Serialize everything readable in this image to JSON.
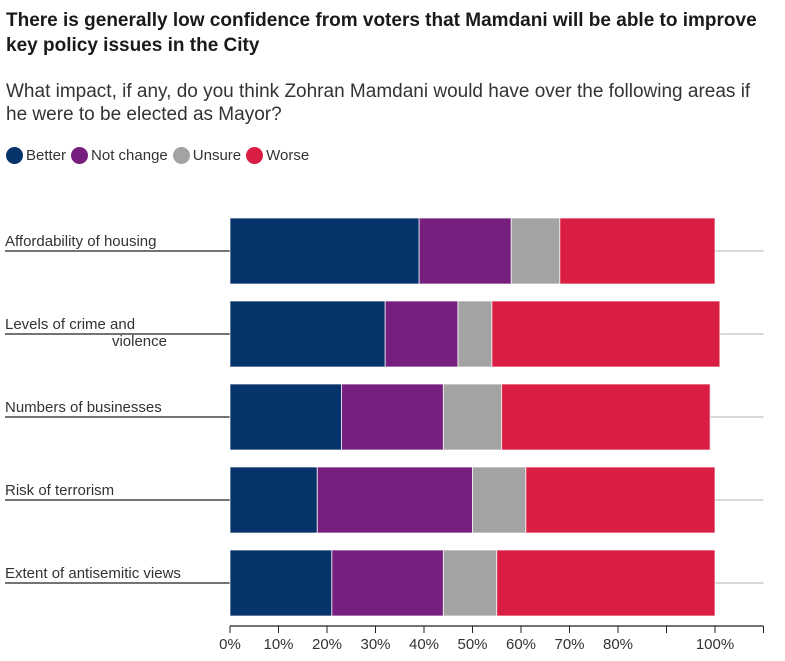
{
  "chart_data": {
    "type": "bar",
    "orientation": "horizontal",
    "stacked": true,
    "title": "There is generally low confidence from voters that Mamdani will be able to improve key policy issues in the City",
    "subtitle": "What impact, if any, do you think Zohran Mamdani would have over the following areas if he were to be elected as Mayor?",
    "xlabel": "",
    "ylabel": "",
    "xlim": [
      0,
      110
    ],
    "x_ticks": [
      0,
      10,
      20,
      30,
      40,
      50,
      60,
      70,
      80,
      90,
      100,
      110
    ],
    "x_tick_labels": [
      "0%",
      "10%",
      "20%",
      "30%",
      "40%",
      "50%",
      "60%",
      "70%",
      "80%",
      "",
      "100%",
      ""
    ],
    "grid": false,
    "legend_position": "top-left",
    "categories": [
      [
        "Affordability of housing"
      ],
      [
        "Levels of crime and",
        "violence"
      ],
      [
        "Numbers of businesses"
      ],
      [
        "Risk of terrorism"
      ],
      [
        "Extent of antisemitic views"
      ]
    ],
    "series": [
      {
        "name": "Better",
        "color": "#06336A",
        "values": [
          39,
          32,
          23,
          18,
          21
        ]
      },
      {
        "name": "Not change",
        "color": "#761F7F",
        "values": [
          19,
          15,
          21,
          32,
          23
        ]
      },
      {
        "name": "Unsure",
        "color": "#A3A3A3",
        "values": [
          10,
          7,
          12,
          11,
          11
        ]
      },
      {
        "name": "Worse",
        "color": "#DA1E43",
        "values": [
          32,
          47,
          43,
          39,
          45
        ]
      }
    ]
  }
}
